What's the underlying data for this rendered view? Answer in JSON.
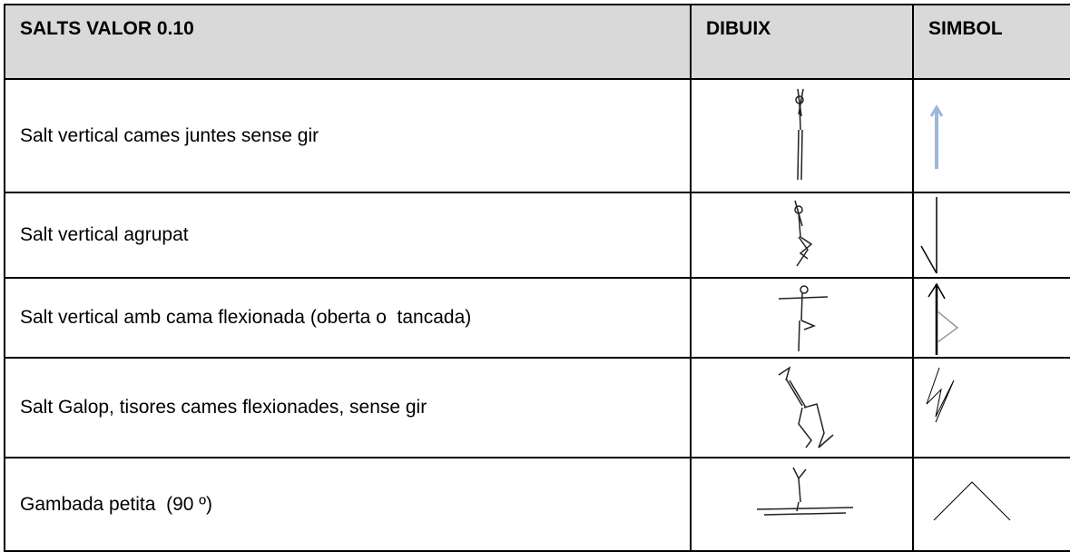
{
  "table": {
    "header": [
      "SALTS VALOR 0.10",
      "DIBUIX",
      "SIMBOL"
    ],
    "rows": [
      [
        "Salt vertical cames juntes sense gir"
      ],
      [
        "Salt vertical agrupat"
      ],
      [
        "Salt vertical amb cama flexionada (oberta o  tancada)"
      ],
      [
        "Salt Galop, tisores cames flexionades, sense gir"
      ],
      [
        "Gambada petita  (90 º)"
      ]
    ]
  }
}
